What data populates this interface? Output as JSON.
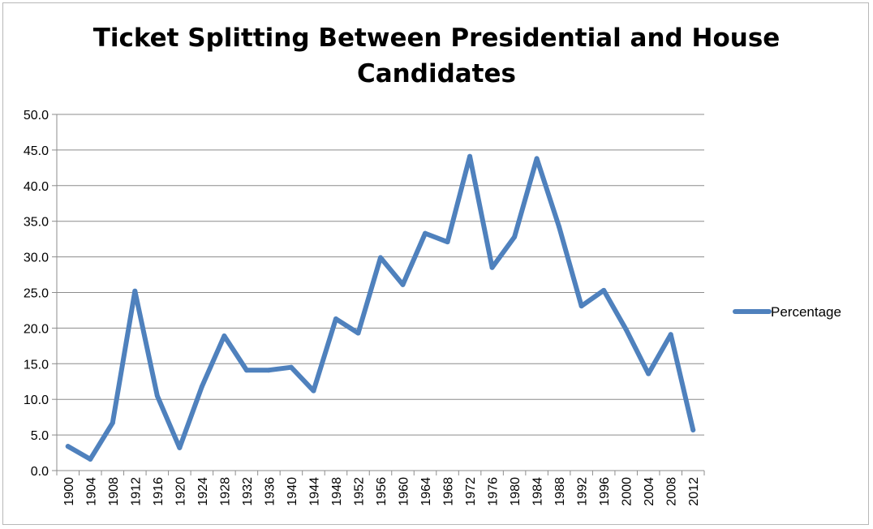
{
  "chart_data": {
    "type": "line",
    "title_lines": [
      "Ticket Splitting Between Presidential and House",
      "Candidates"
    ],
    "xlabel": "",
    "ylabel": "",
    "ylim": [
      0,
      50
    ],
    "y_ticks": [
      "0.0",
      "5.0",
      "10.0",
      "15.0",
      "20.0",
      "25.0",
      "30.0",
      "35.0",
      "40.0",
      "45.0",
      "50.0"
    ],
    "grid": true,
    "legend_position": "right",
    "categories": [
      "1900",
      "1904",
      "1908",
      "1912",
      "1916",
      "1920",
      "1924",
      "1928",
      "1932",
      "1936",
      "1940",
      "1944",
      "1948",
      "1952",
      "1956",
      "1960",
      "1964",
      "1968",
      "1972",
      "1976",
      "1980",
      "1984",
      "1988",
      "1992",
      "1996",
      "2000",
      "2004",
      "2008",
      "2012"
    ],
    "series": [
      {
        "name": "Percentage",
        "color": "#4f81bd",
        "values": [
          3.4,
          1.6,
          6.7,
          25.2,
          10.5,
          3.2,
          11.8,
          18.9,
          14.1,
          14.1,
          14.5,
          11.2,
          21.3,
          19.3,
          29.9,
          26.1,
          33.3,
          32.1,
          44.1,
          28.5,
          32.8,
          43.8,
          34.2,
          23.1,
          25.3,
          19.8,
          13.6,
          19.1,
          5.7
        ]
      }
    ]
  }
}
